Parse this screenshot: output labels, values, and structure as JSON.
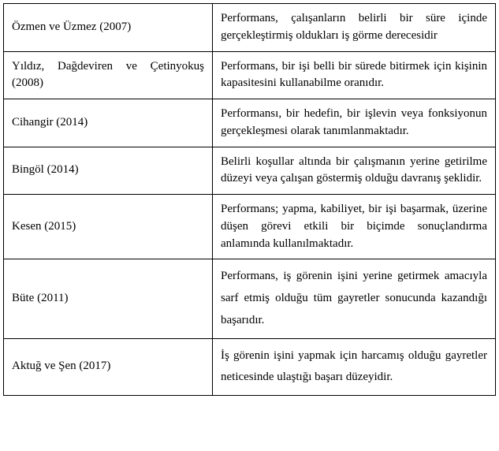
{
  "table": {
    "rows": [
      {
        "author": "Özmen ve Üzmez (2007)",
        "definition": "Performans, çalışanların belirli bir süre içinde gerçekleştirmiş oldukları iş görme derecesidir",
        "spaced": false
      },
      {
        "author": "Yıldız, Dağdeviren ve Çetinyokuş (2008)",
        "definition": "Performans, bir işi belli bir sürede bitirmek için kişinin kapasitesini kullanabilme oranıdır.",
        "spaced": false
      },
      {
        "author": "Cihangir (2014)",
        "definition": "Performansı, bir hedefin, bir işlevin veya fonksiyonun gerçekleşmesi olarak tanımlanmaktadır.",
        "spaced": false
      },
      {
        "author": "Bingöl (2014)",
        "definition": "Belirli koşullar altında bir çalışmanın yerine getirilme düzeyi veya çalışan göstermiş olduğu davranış şeklidir.",
        "spaced": false
      },
      {
        "author": "Kesen (2015)",
        "definition": "Performans; yapma, kabiliyet, bir işi başarmak, üzerine düşen görevi etkili bir biçimde sonuçlandırma anlamında kullanılmaktadır.",
        "spaced": false
      },
      {
        "author": "Büte (2011)",
        "definition": "Performans, iş görenin işini yerine getirmek amacıyla sarf etmiş olduğu tüm gayretler sonucunda kazandığı başarıdır.",
        "spaced": true
      },
      {
        "author": "Aktuğ ve Şen (2017)",
        "definition": "İş görenin işini yapmak için harcamış olduğu gayretler neticesinde ulaştığı başarı düzeyidir.",
        "spaced": true
      }
    ],
    "colors": {
      "border": "#000000",
      "text": "#000000",
      "background": "#ffffff"
    },
    "typography": {
      "font_family": "Times New Roman",
      "font_size_pt": 12
    },
    "column_widths": [
      "265px",
      "auto"
    ]
  }
}
